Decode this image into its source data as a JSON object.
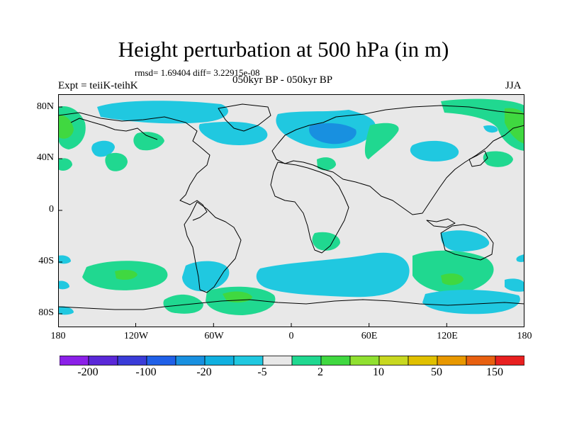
{
  "title": "Height perturbation at 500 hPa (in m)",
  "stats": "rmsd= 1.69404  diff= 3.22915e-08",
  "left_label": "Expt = teiiK-teihK",
  "center_label": "050kyr BP - 050kyr BP",
  "right_label": "JJA",
  "map": {
    "background_color": "#e8e8e8",
    "coastline_color": "#000000",
    "lat_ticks": [
      "80N",
      "40N",
      "0",
      "40S",
      "80S"
    ],
    "lon_ticks": [
      "180",
      "120W",
      "60W",
      "0",
      "60E",
      "120E",
      "180"
    ]
  },
  "colorbar": {
    "colors": [
      "#8b20e8",
      "#5a28d8",
      "#3a3cd8",
      "#2060e8",
      "#1890e0",
      "#10b0e0",
      "#20c8e0",
      "#e8e8e8",
      "#20d890",
      "#40d840",
      "#90e030",
      "#c8d820",
      "#e0c000",
      "#e89800",
      "#e86010",
      "#e82020"
    ],
    "labels": [
      "-200",
      "-100",
      "-20",
      "-5",
      "2",
      "10",
      "50",
      "150"
    ]
  },
  "field_colors": {
    "cyan": "#20c8e0",
    "blue": "#1890e0",
    "green": "#20d890",
    "lime": "#40d840"
  }
}
